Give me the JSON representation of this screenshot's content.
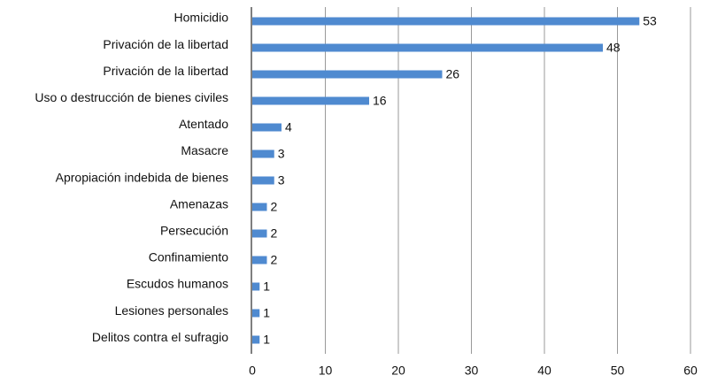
{
  "chart_data": {
    "type": "bar",
    "orientation": "horizontal",
    "categories": [
      "Homicidio",
      "Privación de la libertad",
      "Privación de la libertad",
      "Uso o destrucción de bienes civiles",
      "Atentado",
      "Masacre",
      "Apropiación indebida de bienes",
      "Amenazas",
      "Persecución",
      "Confinamiento",
      "Escudos humanos",
      "Lesiones personales",
      "Delitos contra el sufragio"
    ],
    "values": [
      53,
      48,
      26,
      16,
      4,
      3,
      3,
      2,
      2,
      2,
      1,
      1,
      1
    ],
    "color": "#4f8ad0",
    "xlim": [
      0,
      60
    ],
    "xticks": [
      0,
      10,
      20,
      30,
      40,
      50,
      60
    ],
    "grid": true
  }
}
